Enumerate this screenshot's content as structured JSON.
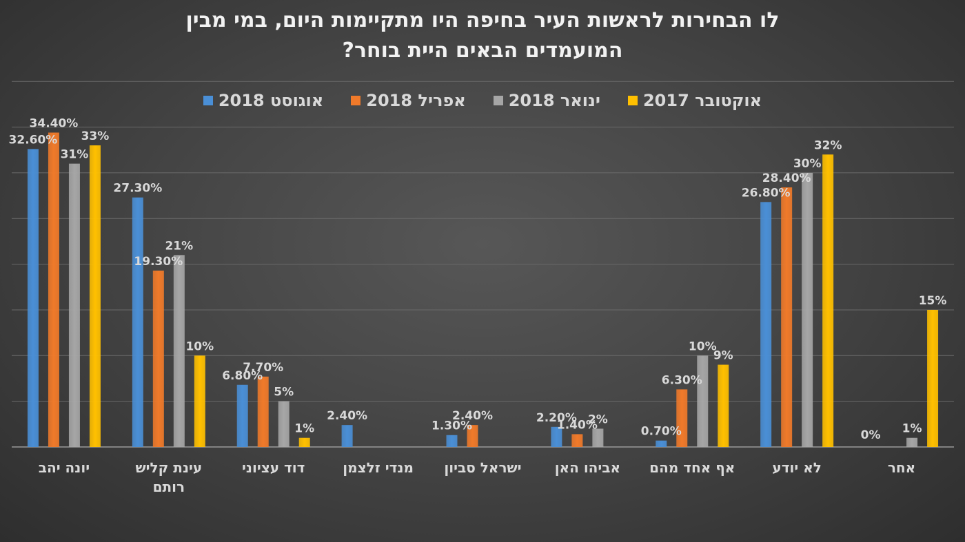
{
  "chart_data": {
    "type": "bar",
    "title": [
      "לו הבחירות לראשות העיר בחיפה היו מתקיימות היום, במי מבין",
      "המועמדים הבאים היית בוחר?"
    ],
    "categories": [
      [
        "יונה יהב"
      ],
      [
        "עינת קליש",
        "רותם"
      ],
      [
        "דוד עציוני"
      ],
      [
        "מנדי זלצמן"
      ],
      [
        "ישראל סביון"
      ],
      [
        "אביהו האן"
      ],
      [
        "אף אחד מהם"
      ],
      [
        "לא יודע"
      ],
      [
        "אחר"
      ]
    ],
    "series": [
      {
        "name": "אוגוסט 2018",
        "color": "#4a8fd6",
        "values": [
          32.6,
          27.3,
          6.8,
          2.4,
          1.3,
          2.2,
          0.7,
          26.8,
          null
        ],
        "labels": [
          "32.60%",
          "27.30%",
          "6.80%",
          "2.40%",
          "1.30%",
          "2.20%",
          "0.70%",
          "26.80%",
          ""
        ]
      },
      {
        "name": "אפריל 2018",
        "color": "#f07a2a",
        "values": [
          34.4,
          19.3,
          7.7,
          null,
          2.4,
          1.4,
          6.3,
          28.4,
          null
        ],
        "labels": [
          "34.40%",
          "19.30%",
          "7.70%",
          "",
          "2.40%",
          "1.40%",
          "6.30%",
          "28.40%",
          ""
        ]
      },
      {
        "name": "ינואר 2018",
        "color": "#a6a6a6",
        "values": [
          31,
          21,
          5,
          null,
          null,
          2,
          10,
          30,
          1
        ],
        "labels": [
          "31%",
          "21%",
          "5%",
          "",
          "",
          "2%",
          "10%",
          "30%",
          "1%"
        ]
      },
      {
        "name": "אוקטובר 2017",
        "color": "#ffc000",
        "values": [
          33,
          10,
          1,
          null,
          null,
          null,
          9,
          32,
          15
        ],
        "labels": [
          "33%",
          "10%",
          "1%",
          "",
          "",
          "",
          "9%",
          "32%",
          "15%"
        ]
      }
    ],
    "extra_labels": [
      {
        "category_index": 8,
        "series_index": 0,
        "text": "0%"
      }
    ],
    "legend_order": [
      0,
      1,
      2,
      3
    ],
    "legend_position": "top",
    "ylim": [
      0,
      40
    ],
    "grid": true,
    "axis_labels_visible": false
  }
}
